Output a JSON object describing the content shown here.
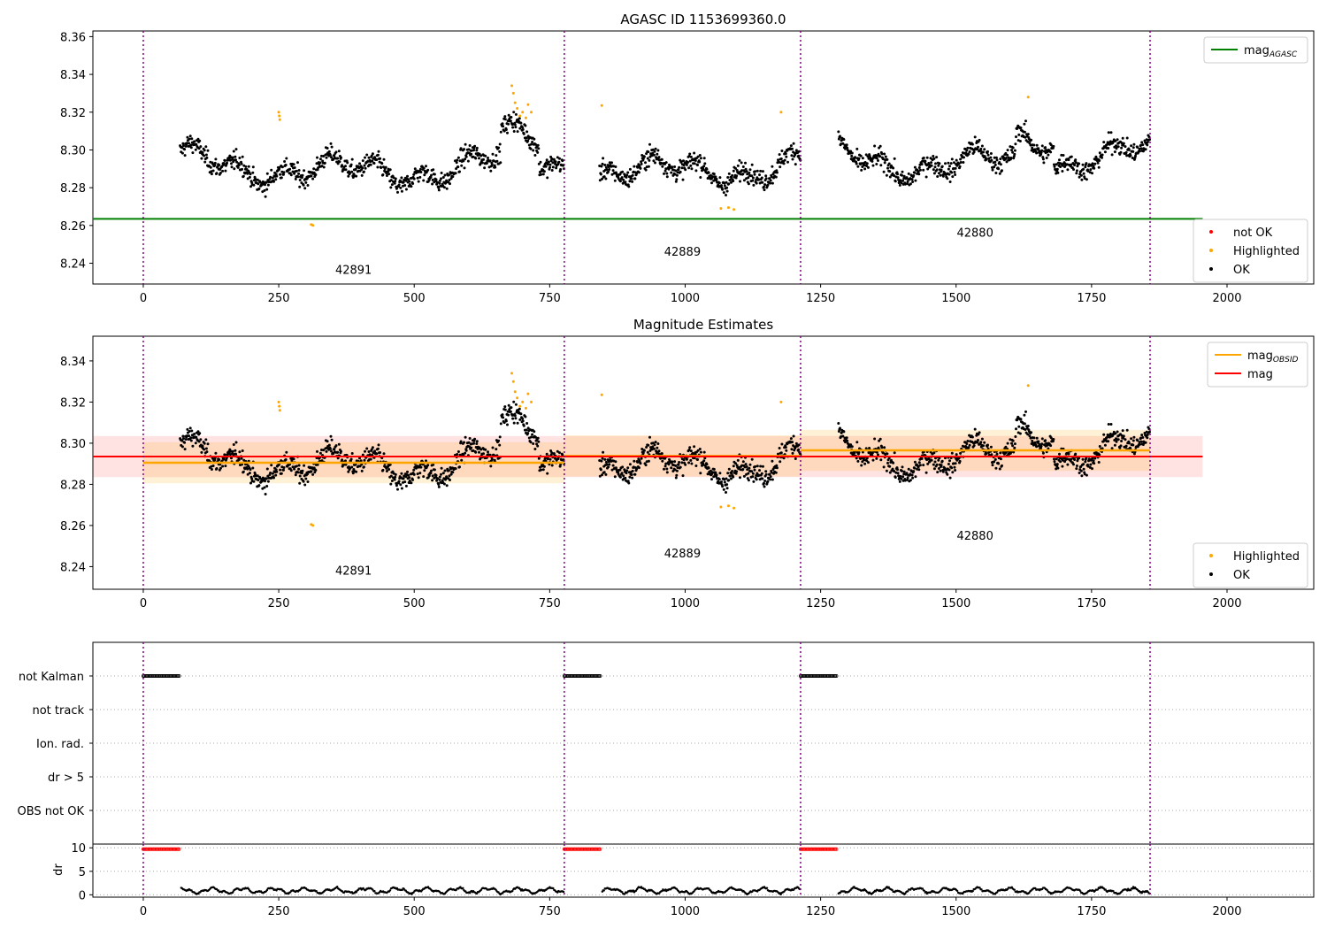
{
  "chart_data": [
    {
      "type": "scatter",
      "title": "AGASC ID 1153699360.0",
      "xlim": [
        -93,
        2160
      ],
      "ylim": [
        8.229,
        8.363
      ],
      "xticks": [
        0,
        250,
        500,
        750,
        1000,
        1250,
        1500,
        1750,
        2000
      ],
      "yticks": [
        8.24,
        8.26,
        8.28,
        8.3,
        8.32,
        8.34,
        8.36
      ],
      "ytick_labels": [
        "8.24",
        "8.26",
        "8.28",
        "8.30",
        "8.32",
        "8.34",
        "8.36"
      ],
      "obsid_boundaries": [
        0,
        777,
        1213,
        1858
      ],
      "obsid_labels": [
        {
          "text": "42891",
          "x": 388,
          "y": 8.2345
        },
        {
          "text": "42889",
          "x": 995,
          "y": 8.244
        },
        {
          "text": "42880",
          "x": 1535,
          "y": 8.254
        }
      ],
      "reference_lines": [
        {
          "name": "mag_AGASC",
          "value": 8.2635,
          "x_range": [
            -93,
            1955
          ],
          "color": "#008000"
        }
      ],
      "legend_top": [
        {
          "label": "mag",
          "subscript": "AGASC",
          "kind": "line",
          "color": "#008000"
        }
      ],
      "legend_bottom": [
        {
          "label": "not OK",
          "kind": "dot",
          "color": "#ff0000"
        },
        {
          "label": "Highlighted",
          "kind": "dot",
          "color": "#ffa500"
        },
        {
          "label": "OK",
          "kind": "dot",
          "color": "#000000"
        }
      ],
      "grid": false
    },
    {
      "type": "scatter",
      "title": "Magnitude Estimates",
      "xlim": [
        -93,
        2160
      ],
      "ylim": [
        8.229,
        8.352
      ],
      "xticks": [
        0,
        250,
        500,
        750,
        1000,
        1250,
        1500,
        1750,
        2000
      ],
      "yticks": [
        8.24,
        8.26,
        8.28,
        8.3,
        8.32,
        8.34
      ],
      "ytick_labels": [
        "8.24",
        "8.26",
        "8.28",
        "8.30",
        "8.32",
        "8.34"
      ],
      "obsid_boundaries": [
        0,
        777,
        1213,
        1858
      ],
      "obsid_labels": [
        {
          "text": "42891",
          "x": 388,
          "y": 8.236
        },
        {
          "text": "42889",
          "x": 995,
          "y": 8.2445
        },
        {
          "text": "42880",
          "x": 1535,
          "y": 8.253
        }
      ],
      "mag_line": {
        "name": "mag",
        "value": 8.2935,
        "band": [
          8.2835,
          8.3035
        ],
        "x_range": [
          -93,
          1955
        ],
        "color": "#ff0000"
      },
      "obsid_mags": [
        {
          "x_range": [
            0,
            777
          ],
          "value": 8.2905,
          "band": [
            8.2805,
            8.3005
          ]
        },
        {
          "x_range": [
            777,
            1213
          ],
          "value": 8.2938,
          "band": [
            8.2838,
            8.3038
          ]
        },
        {
          "x_range": [
            1213,
            1858
          ],
          "value": 8.2965,
          "band": [
            8.2865,
            8.3065
          ]
        }
      ],
      "legend_top": [
        {
          "label": "mag",
          "subscript": "OBSID",
          "kind": "line",
          "color": "#ffa500"
        },
        {
          "label": "mag",
          "kind": "line",
          "color": "#ff0000"
        }
      ],
      "legend_bottom": [
        {
          "label": "Highlighted",
          "kind": "dot",
          "color": "#ffa500"
        },
        {
          "label": "OK",
          "kind": "dot",
          "color": "#000000"
        }
      ],
      "grid": false
    },
    {
      "type": "scatter",
      "title": "",
      "xlim": [
        -93,
        2160
      ],
      "flag_categories": [
        "not Kalman",
        "not track",
        "Ion. rad.",
        "dr > 5",
        "OBS not OK"
      ],
      "flag_segments": [
        {
          "flag": "not Kalman",
          "x_range": [
            0,
            68
          ]
        },
        {
          "flag": "not Kalman",
          "x_range": [
            777,
            845
          ]
        },
        {
          "flag": "not Kalman",
          "x_range": [
            1213,
            1281
          ]
        }
      ],
      "obsid_boundaries": [
        0,
        777,
        1213,
        1858
      ],
      "grid": "y-dotted"
    },
    {
      "type": "line",
      "ylabel": "dr",
      "xlim": [
        -93,
        2160
      ],
      "ylim": [
        -0.5,
        10.8
      ],
      "xticks": [
        0,
        250,
        500,
        750,
        1000,
        1250,
        1500,
        1750,
        2000
      ],
      "yticks": [
        0,
        5,
        10
      ],
      "ytick_labels": [
        "0",
        "5",
        "10"
      ],
      "dr_high_segments": [
        {
          "x_range": [
            0,
            68
          ],
          "value": 9.7
        },
        {
          "x_range": [
            777,
            845
          ],
          "value": 9.7
        },
        {
          "x_range": [
            1213,
            1281
          ],
          "value": 9.7
        }
      ],
      "dr_low_segments": [
        {
          "x_range": [
            70,
            777
          ],
          "mean": 0.9
        },
        {
          "x_range": [
            847,
            1213
          ],
          "mean": 0.9
        },
        {
          "x_range": [
            1283,
            1858
          ],
          "mean": 0.9
        }
      ],
      "obsid_boundaries": [
        0,
        777,
        1213,
        1858
      ],
      "grid": "y-dotted"
    }
  ]
}
